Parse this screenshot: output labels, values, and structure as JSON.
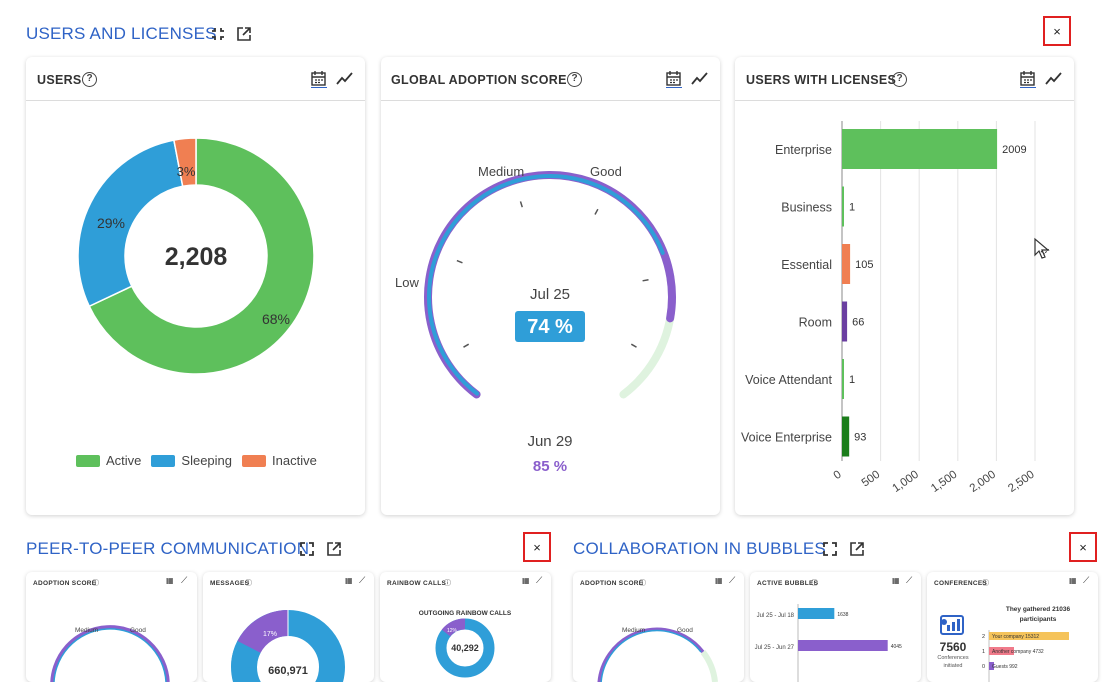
{
  "sections": {
    "users_licenses": {
      "title": "USERS AND LICENSES",
      "close": "×"
    },
    "p2p": {
      "title": "PEER-TO-PEER COMMUNICATION",
      "close": "×"
    },
    "bubbles": {
      "title": "COLLABORATION IN BUBBLES",
      "close": "×"
    }
  },
  "users_card": {
    "title": "USERS",
    "help": "?",
    "total": "2,208",
    "labels": {
      "active_pct": "68%",
      "sleeping_pct": "29%",
      "inactive_pct": "3%"
    },
    "legend": [
      "Active",
      "Sleeping",
      "Inactive"
    ],
    "colors": {
      "active": "#5ec05c",
      "sleeping": "#2f9ed8",
      "inactive": "#f07f52"
    }
  },
  "adoption_card": {
    "title": "GLOBAL ADOPTION SCORE",
    "help": "?",
    "gauge_labels": {
      "low": "Low",
      "medium": "Medium",
      "good": "Good"
    },
    "current_date": "Jul 25",
    "current_score": "74 %",
    "previous_date": "Jun 29",
    "previous_score": "85 %",
    "current_value": 74,
    "previous_value": 85
  },
  "licenses_card": {
    "title": "USERS WITH LICENSES",
    "help": "?"
  },
  "small_cards": {
    "adoption_score": "ADOPTION SCORE",
    "messages": "MESSAGES",
    "rainbow_calls": "RAINBOW CALLS",
    "outgoing_calls": "OUTGOING RAINBOW CALLS",
    "calls_total": "40,292",
    "messages_pct": "17%",
    "messages_total": "660,971",
    "calls_pct": "12%",
    "medium": "Medium",
    "good": "Good",
    "adoption_score_2": "ADOPTION SCORE",
    "active_bubbles": "ACTIVE BUBBLES",
    "conferences": "CONFERENCES",
    "bubble_row1": "Jul 25 - Jul 18",
    "bubble_row1_val": "1638",
    "bubble_row2": "Jul 25 - Jun 27",
    "bubble_row2_val": "4045",
    "conf_count": "7560",
    "conf_label1": "Conferences",
    "conf_label2": "initiated",
    "conf_headline1": "They gathered 21036",
    "conf_headline2": "participants",
    "conf_rows": [
      {
        "rank": "2",
        "text": "Your company 15312"
      },
      {
        "rank": "1",
        "text": "Another company 4732"
      },
      {
        "rank": "0",
        "text": "Guests 992"
      }
    ]
  },
  "chart_data": [
    {
      "type": "pie",
      "categories": [
        "Active",
        "Sleeping",
        "Inactive"
      ],
      "values": [
        68,
        29,
        3
      ],
      "colors": [
        "#5ec05c",
        "#2f9ed8",
        "#f07f52"
      ]
    },
    {
      "type": "bar",
      "orientation": "horizontal",
      "categories": [
        "Enterprise",
        "Business",
        "Essential",
        "Room",
        "Voice Attendant",
        "Voice Enterprise"
      ],
      "values": [
        2009,
        1,
        105,
        66,
        1,
        93
      ],
      "colors": [
        "#5ec05c",
        "#5ec05c",
        "#f07f52",
        "#6a3fa0",
        "#5ec05c",
        "#1b7d1b"
      ],
      "xlim": [
        0,
        2500
      ],
      "xticks": [
        "0",
        "500",
        "1,000",
        "1,500",
        "2,000",
        "2,500"
      ]
    },
    {
      "type": "bar",
      "orientation": "horizontal",
      "categories": [
        "Jul 25 - Jul 18",
        "Jul 25 - Jun 27"
      ],
      "values": [
        1638,
        4045
      ],
      "colors": [
        "#2f9ed8",
        "#8a5fcc"
      ]
    }
  ]
}
